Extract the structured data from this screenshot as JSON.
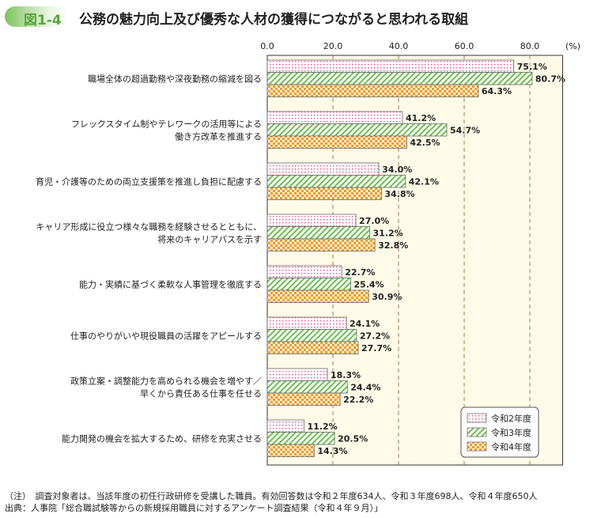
{
  "header": {
    "figure_number": "図1-4",
    "title": "公務の魅力向上及び優秀な人材の獲得につながると思われる取組"
  },
  "chart_data": {
    "type": "bar",
    "orientation": "horizontal",
    "unit_label": "(%)",
    "xlim": [
      0,
      90
    ],
    "ticks": [
      "0.0",
      "20.0",
      "40.0",
      "60.0",
      "80.0"
    ],
    "tick_values": [
      0,
      20,
      40,
      60,
      80
    ],
    "grid": true,
    "legend_position": "bottom-right",
    "categories": [
      [
        "職場全体の超過勤務や深夜勤務の縮減を図る"
      ],
      [
        "フレックスタイム制やテレワークの活用等による",
        "働き方改革を推進する"
      ],
      [
        "育児・介護等のための両立支援策を推進し負担に配慮する"
      ],
      [
        "キャリア形成に役立つ様々な職務を経験させるとともに、",
        "将来のキャリアパスを示す"
      ],
      [
        "能力・実績に基づく柔軟な人事管理を徹底する"
      ],
      [
        "仕事のやりがいや現役職員の活躍をアピールする"
      ],
      [
        "政策立案・調整能力を高められる機会を増やす／",
        "早くから責任ある仕事を任せる"
      ],
      [
        "能力開発の機会を拡大するため、研修を充実させる"
      ]
    ],
    "series": [
      {
        "name": "令和2年度",
        "values": [
          75.1,
          41.2,
          34.0,
          27.0,
          22.7,
          24.1,
          18.3,
          11.2
        ],
        "color": "#e8508f",
        "pattern": "dots"
      },
      {
        "name": "令和3年度",
        "values": [
          80.7,
          54.7,
          42.1,
          31.2,
          25.4,
          27.2,
          24.4,
          20.5
        ],
        "color": "#6cbf4e",
        "pattern": "hatch"
      },
      {
        "name": "令和4年度",
        "values": [
          64.3,
          42.5,
          34.8,
          32.8,
          30.9,
          27.7,
          22.2,
          14.3
        ],
        "color": "#f39a1e",
        "pattern": "checker"
      }
    ]
  },
  "notes": {
    "note": "（注）　調査対象者は、当該年度の初任行政研修を受講した職員。有効回答数は令和２年度634人、令和３年度698人、令和４年度650人",
    "source": "出典：人事院「総合職試験等からの新規採用職員に対するアンケート調査結果（令和４年９月）」"
  }
}
